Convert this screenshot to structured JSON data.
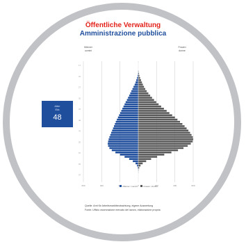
{
  "header": {
    "title_de": "Öffentliche Verwaltung",
    "title_it": "Amministrazione pubblica"
  },
  "labels": {
    "left_line1": "Männer",
    "left_line2": "uomini",
    "right_line1": "Frauen",
    "right_line2": "donne"
  },
  "age_box": {
    "caption_line1": "Alter",
    "caption_line2": "Età",
    "value": "48"
  },
  "source": {
    "line1": "Quelle: Amt für Arbeitsmarktbeobachtung, eigene Auswertung",
    "line2": "Fonte: Ufficio osservazione mercato del lavoro, elaborazione propria"
  },
  "colors": {
    "title_de": "#e3231b",
    "title_it": "#1f4e9c",
    "men": "#1f4e9c",
    "women": "#5a5a5a",
    "ring": "#c1c2c6",
    "age_box": "#1f4e9c"
  },
  "chart_data": {
    "type": "bar",
    "orientation": "horizontal-population-pyramid",
    "ages": [
      17,
      18,
      19,
      20,
      21,
      22,
      23,
      24,
      25,
      26,
      27,
      28,
      29,
      30,
      31,
      32,
      33,
      34,
      35,
      36,
      37,
      38,
      39,
      40,
      41,
      42,
      43,
      44,
      45,
      46,
      47,
      48,
      49,
      50,
      51,
      52,
      53,
      54,
      55,
      56,
      57,
      58,
      59,
      60,
      61,
      62,
      63,
      64,
      65,
      66,
      67,
      68,
      69,
      70
    ],
    "series": [
      {
        "name": "Männer / uomini",
        "values": [
          0,
          0,
          0,
          2,
          4,
          8,
          14,
          22,
          30,
          40,
          52,
          64,
          76,
          88,
          100,
          112,
          124,
          138,
          150,
          162,
          174,
          186,
          198,
          210,
          222,
          234,
          246,
          256,
          266,
          276,
          286,
          296,
          306,
          316,
          324,
          330,
          334,
          330,
          316,
          290,
          250,
          200,
          150,
          100,
          60,
          30,
          14,
          6,
          2,
          0,
          0,
          0,
          0,
          0
        ]
      },
      {
        "name": "Frauen / donne",
        "values": [
          0,
          0,
          0,
          4,
          8,
          12,
          20,
          30,
          40,
          50,
          62,
          76,
          92,
          110,
          130,
          150,
          172,
          196,
          222,
          250,
          280,
          310,
          340,
          370,
          400,
          428,
          456,
          482,
          506,
          528,
          548,
          566,
          582,
          596,
          600,
          594,
          574,
          540,
          494,
          434,
          362,
          284,
          206,
          140,
          86,
          48,
          24,
          10,
          4,
          2,
          0,
          0,
          0,
          0
        ]
      }
    ],
    "xlim": [
      -600,
      600
    ],
    "grid": true,
    "legend_position": "bottom"
  }
}
